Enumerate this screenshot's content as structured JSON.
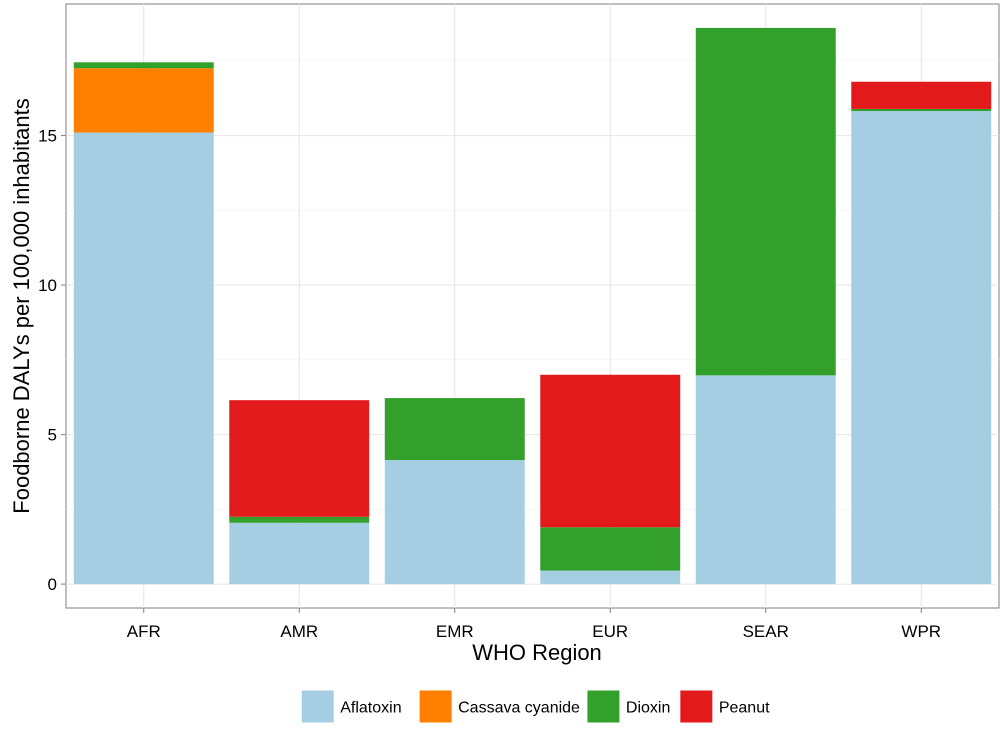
{
  "chart_data": {
    "type": "bar",
    "stacked": true,
    "xlabel": "WHO Region",
    "ylabel": "Foodborne DALYs per 100,000 inhabitants",
    "categories": [
      "AFR",
      "AMR",
      "EMR",
      "EUR",
      "SEAR",
      "WPR"
    ],
    "series": [
      {
        "name": "Aflatoxin",
        "color": "#a6cee3",
        "values": [
          15.1,
          2.05,
          4.15,
          0.45,
          6.98,
          15.82
        ]
      },
      {
        "name": "Cassava cyanide",
        "color": "#ff7f00",
        "values": [
          2.15,
          0.0,
          0.0,
          0.0,
          0.0,
          0.0
        ]
      },
      {
        "name": "Dioxin",
        "color": "#33a02c",
        "values": [
          0.2,
          0.2,
          2.07,
          1.45,
          11.62,
          0.07
        ]
      },
      {
        "name": "Peanut",
        "color": "#e31a1c",
        "values": [
          0.0,
          3.9,
          0.0,
          5.1,
          0.0,
          0.91
        ]
      }
    ],
    "ylim": [
      -0.8,
      19.4
    ],
    "yticks": [
      0,
      5,
      10,
      15
    ],
    "grid": true,
    "legend_position": "bottom"
  }
}
